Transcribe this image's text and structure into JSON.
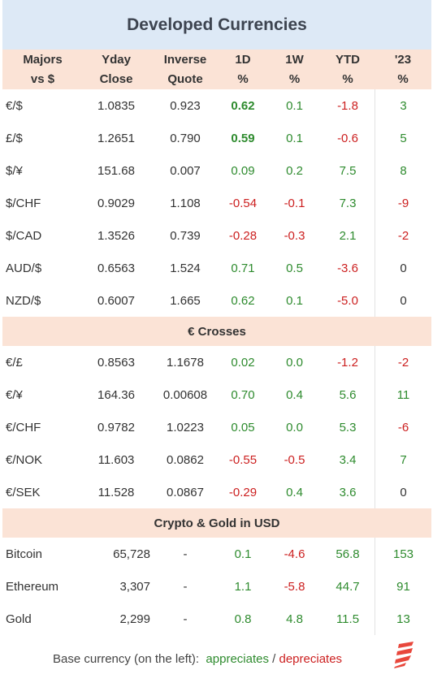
{
  "title": "Developed Currencies",
  "header": {
    "col0": [
      "Majors",
      "vs $"
    ],
    "col1": [
      "Yday",
      "Close"
    ],
    "col2": [
      "Inverse",
      "Quote"
    ],
    "col3": [
      "1D",
      "%"
    ],
    "col4": [
      "1W",
      "%"
    ],
    "col5": [
      "YTD",
      "%"
    ],
    "col6": [
      "'23",
      "%"
    ]
  },
  "majors": [
    [
      "€/$",
      "1.0835",
      "0.923",
      "0.62",
      "0.1",
      "-1.8",
      "3"
    ],
    [
      "£/$",
      "1.2651",
      "0.790",
      "0.59",
      "0.1",
      "-0.6",
      "5"
    ],
    [
      "$/¥",
      "151.68",
      "0.007",
      "0.09",
      "0.2",
      "7.5",
      "8"
    ],
    [
      "$/CHF",
      "0.9029",
      "1.108",
      "-0.54",
      "-0.1",
      "7.3",
      "-9"
    ],
    [
      "$/CAD",
      "1.3526",
      "0.739",
      "-0.28",
      "-0.3",
      "2.1",
      "-2"
    ],
    [
      "AUD/$",
      "0.6563",
      "1.524",
      "0.71",
      "0.5",
      "-3.6",
      "0"
    ],
    [
      "NZD/$",
      "0.6007",
      "1.665",
      "0.62",
      "0.1",
      "-5.0",
      "0"
    ]
  ],
  "crosses_title": "€ Crosses",
  "crosses": [
    [
      "€/£",
      "0.8563",
      "1.1678",
      "0.02",
      "0.0",
      "-1.2",
      "-2"
    ],
    [
      "€/¥",
      "164.36",
      "0.00608",
      "0.70",
      "0.4",
      "5.6",
      "11"
    ],
    [
      "€/CHF",
      "0.9782",
      "1.0223",
      "0.05",
      "0.0",
      "5.3",
      "-6"
    ],
    [
      "€/NOK",
      "11.603",
      "0.0862",
      "-0.55",
      "-0.5",
      "3.4",
      "7"
    ],
    [
      "€/SEK",
      "11.528",
      "0.0867",
      "-0.29",
      "0.4",
      "3.6",
      "0"
    ]
  ],
  "crypto_title": "Crypto  &  Gold in USD",
  "crypto": [
    [
      "Bitcoin",
      "65,728",
      "-",
      "0.1",
      "-4.6",
      "56.8",
      "153"
    ],
    [
      "Ethereum",
      "3,307",
      "-",
      "1.1",
      "-5.8",
      "44.7",
      "91"
    ],
    [
      "Gold",
      "2,299",
      "-",
      "0.8",
      "4.8",
      "11.5",
      "13"
    ]
  ],
  "footer": {
    "prefix": "Base currency (on the left):  ",
    "appreciates": "appreciates",
    "separator": " / ",
    "depreciates": "depreciates"
  },
  "colors": {
    "title_bg": "#dde9f6",
    "header_bg": "#fbe3d6",
    "positive": "#2e8b2e",
    "negative": "#cc1f1f",
    "logo": "#e8473c"
  },
  "icons": {
    "logo": "brand-logo-icon"
  }
}
